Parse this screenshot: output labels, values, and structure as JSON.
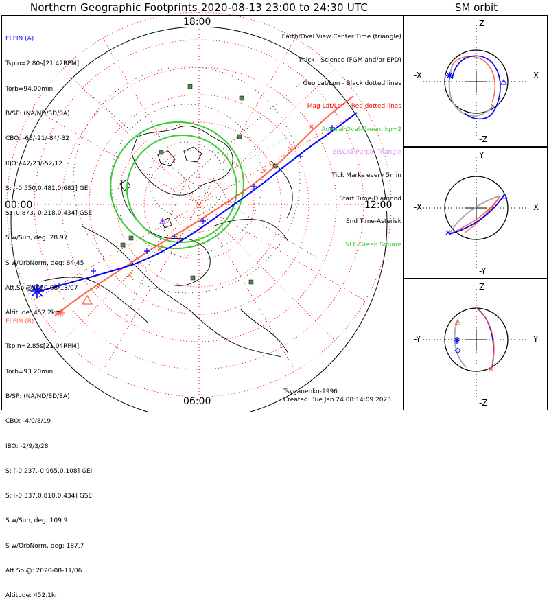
{
  "title": "Northern Geographic Footprints 2020-08-13 23:00 to 24:30 UTC",
  "sm_title": "SM orbit",
  "elfin_a": {
    "name": "ELFIN (A)",
    "color": "#0000ff",
    "lines": [
      "Tspin=2.80s[21.42RPM]",
      "Torb=94.00min",
      "B/SP: (NA/ND/SD/SA)",
      "CBO: -68/-21/-84/-32",
      "IBO: -42/23/-52/12",
      "S: [-0.550,0.481,0.682] GEI",
      "S: [0.873,-0.218,0.434] GSE",
      "S w/Sun, deg: 28.97",
      "S w/OrbNorm, deg: 84.45",
      "Att.Sol@2020-08-13/07",
      "Altitude: 452.2km"
    ]
  },
  "elfin_b": {
    "name": "ELFIN (B)",
    "color": "#ff6347",
    "lines": [
      "Tspin=2.85s[21.04RPM]",
      "Torb=93.20min",
      "B/SP: (NA/ND/SD/SA)",
      "CBO: -4/0/8/19",
      "IBO: -2/9/3/28",
      "S: [-0.237,-0.965,0.108] GEI",
      "S: [-0.337,0.810,0.434] GSE",
      "S w/Sun, deg: 109.9",
      "S w/OrbNorm, deg: 187.7",
      "Att.Sol@: 2020-08-11/06",
      "Altitude: 452.1km"
    ]
  },
  "legend": [
    {
      "text": "Earth/Oval View Center Time (triangle)",
      "color": "#000000"
    },
    {
      "text": "Thick - Science (FGM and/or EPD)",
      "color": "#000000"
    },
    {
      "text": "Geo Lat/Lon - Black dotted lines",
      "color": "#000000"
    },
    {
      "text": "Mag Lat/Lon - Red dotted lines",
      "color": "#ff0000"
    },
    {
      "text": "Auroral Oval-Green, kp=2",
      "color": "#33cc33"
    },
    {
      "text": "EISCAT-Purple Triangle",
      "color": "#dd88ff"
    },
    {
      "text": "Tick Marks every 5min",
      "color": "#000000"
    },
    {
      "text": "Start Time-Diamond",
      "color": "#000000"
    },
    {
      "text": "End Time-Asterisk",
      "color": "#000000"
    },
    {
      "text": "VLF-Green Square",
      "color": "#33cc33"
    }
  ],
  "mlt_labels": {
    "top": "18:00",
    "left": "00:00",
    "right": "12:00",
    "bottom": "06:00"
  },
  "credit": "Tsyganenko-1996",
  "created": "Created: Tue Jan 24 08:14:09 2023",
  "sm_panels": [
    {
      "top": "Z",
      "bottom": "-Z",
      "left": "-X",
      "right": "X"
    },
    {
      "top": "Y",
      "bottom": "-Y",
      "left": "-X",
      "right": "X"
    },
    {
      "top": "Z",
      "bottom": "-Z",
      "left": "-Y",
      "right": "Y"
    }
  ],
  "colors": {
    "elfin_a": "#0000ff",
    "elfin_b": "#ff6347",
    "mag_grid": "#ff0000",
    "oval": "#33cc33",
    "vlf": "#558855"
  }
}
